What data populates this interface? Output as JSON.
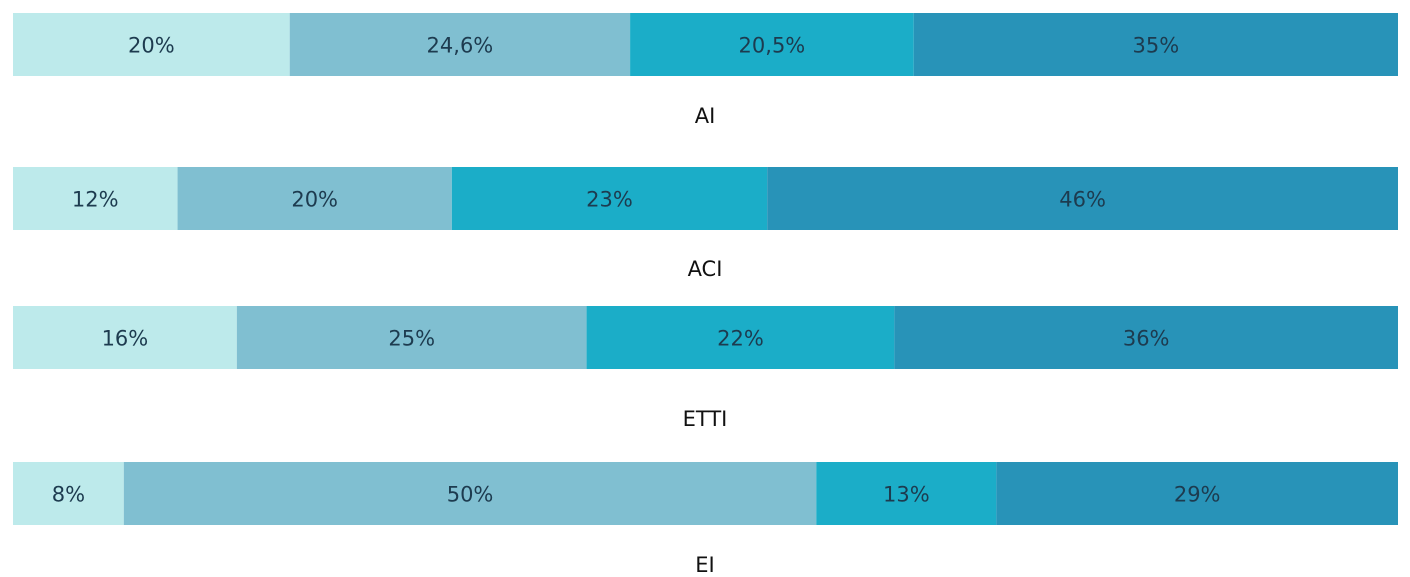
{
  "chart_data": {
    "type": "stacked_bar",
    "categories": [
      "AI",
      "ACI",
      "ETTI",
      "EI"
    ],
    "series": [
      {
        "color": "#bdeaeb",
        "values": [
          20,
          12,
          16,
          8
        ],
        "value_labels": [
          "20%",
          "12%",
          "16%",
          "8%"
        ]
      },
      {
        "color": "#80bfd1",
        "values": [
          24.6,
          20,
          25,
          50
        ],
        "value_labels": [
          "24,6%",
          "20%",
          "25%",
          "50%"
        ]
      },
      {
        "color": "#1badc8",
        "values": [
          20.5,
          23,
          22,
          13
        ],
        "value_labels": [
          "20,5%",
          "23%",
          "22%",
          "13%"
        ]
      },
      {
        "color": "#2893b8",
        "values": [
          35,
          46,
          36,
          29
        ],
        "value_labels": [
          "35%",
          "46%",
          "36%",
          "29%"
        ]
      }
    ]
  }
}
